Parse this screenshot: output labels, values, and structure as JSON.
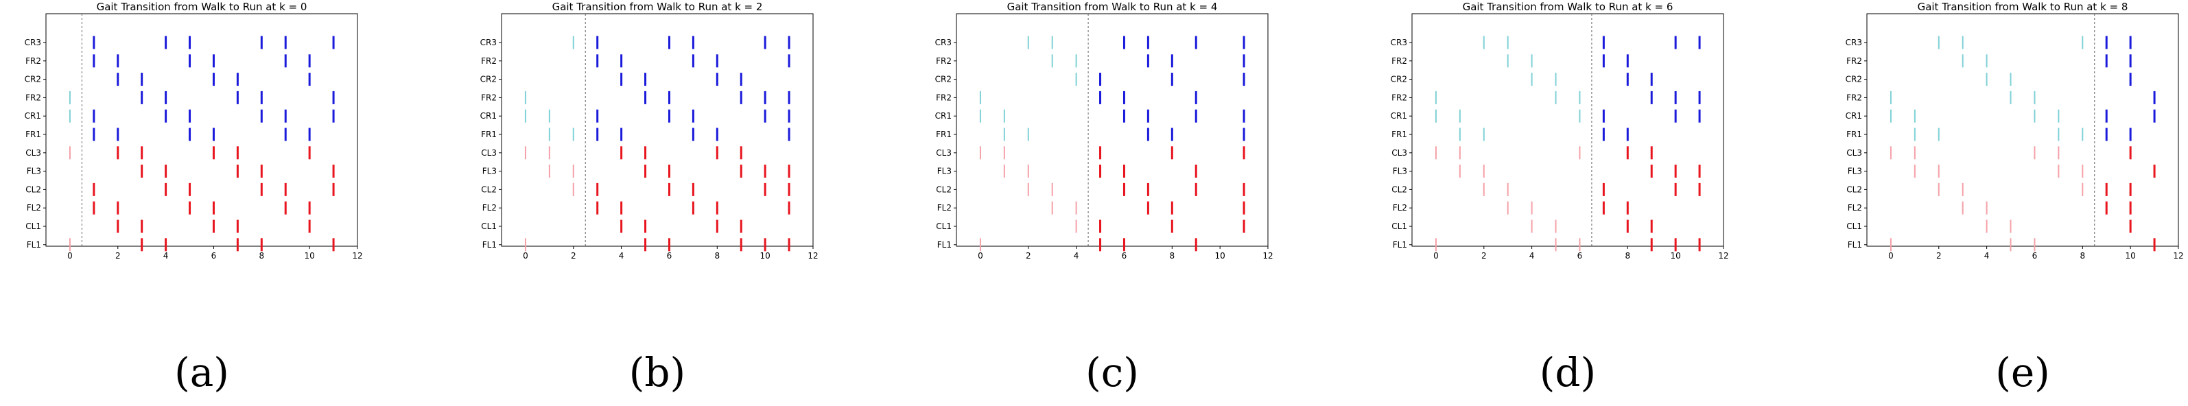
{
  "figure": {
    "captions": [
      "(a)",
      "(b)",
      "(c)",
      "(d)",
      "(e)"
    ]
  },
  "colors": {
    "walk_right": "#7fd1d6",
    "walk_left": "#f5a0a8",
    "run_right": "#1a1adb",
    "run_left": "#e8141e",
    "transition_line": "#666666",
    "frame": "#000000"
  },
  "chart_data": [
    {
      "type": "scatter",
      "title": "Gait Transition from Walk to Run at k = 0",
      "transition_k": 0,
      "transition_marker_x": 0.5,
      "xlim": [
        -1,
        12
      ],
      "xticks": [
        0,
        2,
        4,
        6,
        8,
        10,
        12
      ],
      "yticks": [
        "CR3",
        "FR2",
        "CR2",
        "FR2",
        "CR1",
        "FR1",
        "CL3",
        "FL3",
        "CL2",
        "FL2",
        "CL1",
        "FL1"
      ],
      "grid": false,
      "series": [
        {
          "row": "CR3",
          "walk": [],
          "run": [
            1,
            4,
            5,
            8,
            9,
            11
          ]
        },
        {
          "row": "FR2",
          "walk": [],
          "run": [
            1,
            2,
            5,
            6,
            9,
            10
          ]
        },
        {
          "row": "CR2",
          "walk": [],
          "run": [
            2,
            3,
            6,
            7,
            10
          ]
        },
        {
          "row": "FR2",
          "walk": [
            0
          ],
          "run": [
            3,
            4,
            7,
            8,
            11
          ]
        },
        {
          "row": "CR1",
          "walk": [
            0
          ],
          "run": [
            1,
            4,
            5,
            8,
            9,
            11
          ]
        },
        {
          "row": "FR1",
          "walk": [],
          "run": [
            1,
            2,
            5,
            6,
            9,
            10
          ]
        },
        {
          "row": "CL3",
          "walk": [
            0
          ],
          "run": [
            2,
            3,
            6,
            7,
            10
          ]
        },
        {
          "row": "FL3",
          "walk": [],
          "run": [
            3,
            4,
            7,
            8,
            11
          ]
        },
        {
          "row": "CL2",
          "walk": [],
          "run": [
            1,
            4,
            5,
            8,
            9,
            11
          ]
        },
        {
          "row": "FL2",
          "walk": [],
          "run": [
            1,
            2,
            5,
            6,
            9,
            10
          ]
        },
        {
          "row": "CL1",
          "walk": [],
          "run": [
            2,
            3,
            6,
            7,
            10
          ]
        },
        {
          "row": "FL1",
          "walk": [
            0
          ],
          "run": [
            3,
            4,
            7,
            8,
            11
          ]
        }
      ]
    },
    {
      "type": "scatter",
      "title": "Gait Transition from Walk to Run at k = 2",
      "transition_k": 2,
      "transition_marker_x": 2.5,
      "xlim": [
        -1,
        12
      ],
      "xticks": [
        0,
        2,
        4,
        6,
        8,
        10,
        12
      ],
      "yticks": [
        "CR3",
        "FR2",
        "CR2",
        "FR2",
        "CR1",
        "FR1",
        "CL3",
        "FL3",
        "CL2",
        "FL2",
        "CL1",
        "FL1"
      ],
      "grid": false,
      "series": [
        {
          "row": "CR3",
          "walk": [
            2
          ],
          "run": [
            3,
            6,
            7,
            10,
            11
          ]
        },
        {
          "row": "FR2",
          "walk": [],
          "run": [
            3,
            4,
            7,
            8,
            11
          ]
        },
        {
          "row": "CR2",
          "walk": [],
          "run": [
            4,
            5,
            8,
            9
          ]
        },
        {
          "row": "FR2",
          "walk": [
            0
          ],
          "run": [
            5,
            6,
            9,
            10,
            11
          ]
        },
        {
          "row": "CR1",
          "walk": [
            0,
            1
          ],
          "run": [
            3,
            6,
            7,
            10,
            11
          ]
        },
        {
          "row": "FR1",
          "walk": [
            1,
            2
          ],
          "run": [
            3,
            4,
            7,
            8,
            11
          ]
        },
        {
          "row": "CL3",
          "walk": [
            0,
            1
          ],
          "run": [
            4,
            5,
            8,
            9
          ]
        },
        {
          "row": "FL3",
          "walk": [
            1,
            2
          ],
          "run": [
            5,
            6,
            9,
            10,
            11
          ]
        },
        {
          "row": "CL2",
          "walk": [
            2
          ],
          "run": [
            3,
            6,
            7,
            10,
            11
          ]
        },
        {
          "row": "FL2",
          "walk": [],
          "run": [
            3,
            4,
            7,
            8,
            11
          ]
        },
        {
          "row": "CL1",
          "walk": [],
          "run": [
            4,
            5,
            8,
            9
          ]
        },
        {
          "row": "FL1",
          "walk": [
            0
          ],
          "run": [
            5,
            6,
            9,
            10,
            11
          ]
        }
      ]
    },
    {
      "type": "scatter",
      "title": "Gait Transition from Walk to Run at k = 4",
      "transition_k": 4,
      "transition_marker_x": 4.5,
      "xlim": [
        -1,
        12
      ],
      "xticks": [
        0,
        2,
        4,
        6,
        8,
        10,
        12
      ],
      "yticks": [
        "CR3",
        "FR2",
        "CR2",
        "FR2",
        "CR1",
        "FR1",
        "CL3",
        "FL3",
        "CL2",
        "FL2",
        "CL1",
        "FL1"
      ],
      "grid": false,
      "series": [
        {
          "row": "CR3",
          "walk": [
            2,
            3
          ],
          "run": [
            6,
            7,
            9,
            11
          ]
        },
        {
          "row": "FR2",
          "walk": [
            3,
            4
          ],
          "run": [
            7,
            8,
            11
          ]
        },
        {
          "row": "CR2",
          "walk": [
            4
          ],
          "run": [
            5,
            8,
            11
          ]
        },
        {
          "row": "FR2",
          "walk": [
            0
          ],
          "run": [
            5,
            6,
            9
          ]
        },
        {
          "row": "CR1",
          "walk": [
            0,
            1
          ],
          "run": [
            6,
            7,
            9,
            11
          ]
        },
        {
          "row": "FR1",
          "walk": [
            1,
            2
          ],
          "run": [
            7,
            8,
            11
          ]
        },
        {
          "row": "CL3",
          "walk": [
            0,
            1
          ],
          "run": [
            5,
            8,
            11
          ]
        },
        {
          "row": "FL3",
          "walk": [
            1,
            2
          ],
          "run": [
            5,
            6,
            9
          ]
        },
        {
          "row": "CL2",
          "walk": [
            2,
            3
          ],
          "run": [
            6,
            7,
            9,
            11
          ]
        },
        {
          "row": "FL2",
          "walk": [
            3,
            4
          ],
          "run": [
            7,
            8,
            11
          ]
        },
        {
          "row": "CL1",
          "walk": [
            4
          ],
          "run": [
            5,
            8,
            11
          ]
        },
        {
          "row": "FL1",
          "walk": [
            0
          ],
          "run": [
            5,
            6,
            9
          ]
        }
      ]
    },
    {
      "type": "scatter",
      "title": "Gait Transition from Walk to Run at k = 6",
      "transition_k": 6,
      "transition_marker_x": 6.5,
      "xlim": [
        -1,
        12
      ],
      "xticks": [
        0,
        2,
        4,
        6,
        8,
        10,
        12
      ],
      "yticks": [
        "CR3",
        "FR2",
        "CR2",
        "FR2",
        "CR1",
        "FR1",
        "CL3",
        "FL3",
        "CL2",
        "FL2",
        "CL1",
        "FL1"
      ],
      "grid": false,
      "series": [
        {
          "row": "CR3",
          "walk": [
            2,
            3
          ],
          "run": [
            7,
            10,
            11
          ]
        },
        {
          "row": "FR2",
          "walk": [
            3,
            4
          ],
          "run": [
            7,
            8
          ]
        },
        {
          "row": "CR2",
          "walk": [
            4,
            5
          ],
          "run": [
            8,
            9
          ]
        },
        {
          "row": "FR2",
          "walk": [
            0,
            5,
            6
          ],
          "run": [
            9,
            10,
            11
          ]
        },
        {
          "row": "CR1",
          "walk": [
            0,
            1,
            6
          ],
          "run": [
            7,
            10,
            11
          ]
        },
        {
          "row": "FR1",
          "walk": [
            1,
            2
          ],
          "run": [
            7,
            8
          ]
        },
        {
          "row": "CL3",
          "walk": [
            0,
            1,
            6
          ],
          "run": [
            8,
            9
          ]
        },
        {
          "row": "FL3",
          "walk": [
            1,
            2
          ],
          "run": [
            9,
            10,
            11
          ]
        },
        {
          "row": "CL2",
          "walk": [
            2,
            3
          ],
          "run": [
            7,
            10,
            11
          ]
        },
        {
          "row": "FL2",
          "walk": [
            3,
            4
          ],
          "run": [
            7,
            8
          ]
        },
        {
          "row": "CL1",
          "walk": [
            4,
            5
          ],
          "run": [
            8,
            9
          ]
        },
        {
          "row": "FL1",
          "walk": [
            0,
            5,
            6
          ],
          "run": [
            9,
            10,
            11
          ]
        }
      ]
    },
    {
      "type": "scatter",
      "title": "Gait Transition from Walk to Run at k = 8",
      "transition_k": 8,
      "transition_marker_x": 8.5,
      "xlim": [
        -1,
        12
      ],
      "xticks": [
        0,
        2,
        4,
        6,
        8,
        10,
        12
      ],
      "yticks": [
        "CR3",
        "FR2",
        "CR2",
        "FR2",
        "CR1",
        "FR1",
        "CL3",
        "FL3",
        "CL2",
        "FL2",
        "CL1",
        "FL1"
      ],
      "grid": false,
      "series": [
        {
          "row": "CR3",
          "walk": [
            2,
            3,
            8
          ],
          "run": [
            9,
            10
          ]
        },
        {
          "row": "FR2",
          "walk": [
            3,
            4
          ],
          "run": [
            9,
            10
          ]
        },
        {
          "row": "CR2",
          "walk": [
            4,
            5
          ],
          "run": [
            10
          ]
        },
        {
          "row": "FR2",
          "walk": [
            0,
            5,
            6
          ],
          "run": [
            11
          ]
        },
        {
          "row": "CR1",
          "walk": [
            0,
            1,
            6,
            7
          ],
          "run": [
            9,
            11
          ]
        },
        {
          "row": "FR1",
          "walk": [
            1,
            2,
            7,
            8
          ],
          "run": [
            9,
            10
          ]
        },
        {
          "row": "CL3",
          "walk": [
            0,
            1,
            6,
            7
          ],
          "run": [
            10
          ]
        },
        {
          "row": "FL3",
          "walk": [
            1,
            2,
            7,
            8
          ],
          "run": [
            11
          ]
        },
        {
          "row": "CL2",
          "walk": [
            2,
            3,
            8
          ],
          "run": [
            9,
            10
          ]
        },
        {
          "row": "FL2",
          "walk": [
            3,
            4
          ],
          "run": [
            9,
            10
          ]
        },
        {
          "row": "CL1",
          "walk": [
            4,
            5
          ],
          "run": [
            10
          ]
        },
        {
          "row": "FL1",
          "walk": [
            0,
            5,
            6
          ],
          "run": [
            11
          ]
        }
      ]
    }
  ]
}
